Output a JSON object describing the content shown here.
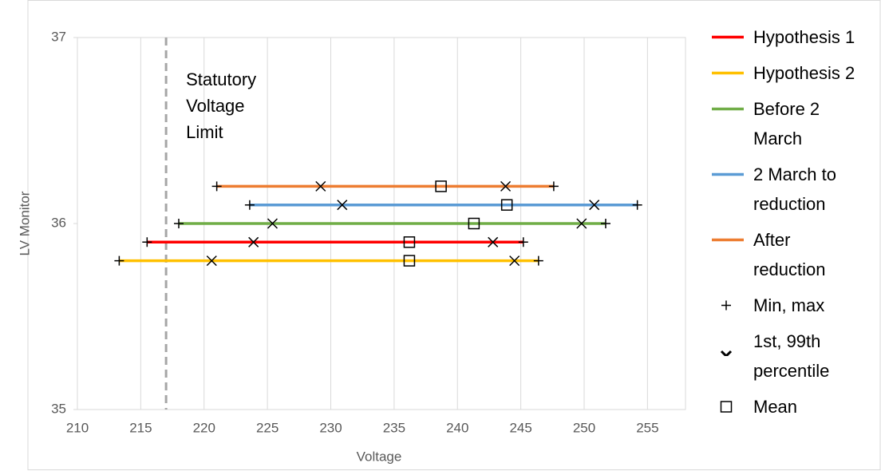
{
  "chart_data": {
    "type": "range",
    "x_label": "Voltage",
    "y_label": "LV Monitor",
    "xlim": [
      210,
      258
    ],
    "xticks": [
      210,
      215,
      220,
      225,
      230,
      235,
      240,
      245,
      250,
      255
    ],
    "ylim": [
      35,
      37
    ],
    "yticks": [
      35,
      36,
      37
    ],
    "grid": true,
    "vline": {
      "x": 217,
      "color": "#a6a6a6",
      "label": [
        "Statutory",
        "Voltage",
        "Limit"
      ]
    },
    "series": [
      {
        "name": "Hypothesis 1",
        "color": "#ff0000",
        "y": 35.9,
        "min": 215.5,
        "p1": 223.9,
        "mean": 236.2,
        "p99": 242.8,
        "max": 245.2
      },
      {
        "name": "Hypothesis 2",
        "color": "#ffc000",
        "y": 35.8,
        "min": 213.3,
        "p1": 220.6,
        "mean": 236.2,
        "p99": 244.5,
        "max": 246.4
      },
      {
        "name": "Before 2 March",
        "color": "#70ad47",
        "y": 36.0,
        "min": 218.0,
        "p1": 225.4,
        "mean": 241.3,
        "p99": 249.8,
        "max": 251.7
      },
      {
        "name": "2 March to reduction",
        "color": "#5b9bd5",
        "y": 36.1,
        "min": 223.6,
        "p1": 230.9,
        "mean": 243.9,
        "p99": 250.8,
        "max": 254.2
      },
      {
        "name": "After reduction",
        "color": "#ed7d31",
        "y": 36.2,
        "min": 221.0,
        "p1": 229.2,
        "mean": 238.7,
        "p99": 243.8,
        "max": 247.6
      }
    ],
    "marker_legend": {
      "minmax": "Min, max",
      "percentile": "1st, 99th percentile",
      "mean": "Mean"
    }
  }
}
